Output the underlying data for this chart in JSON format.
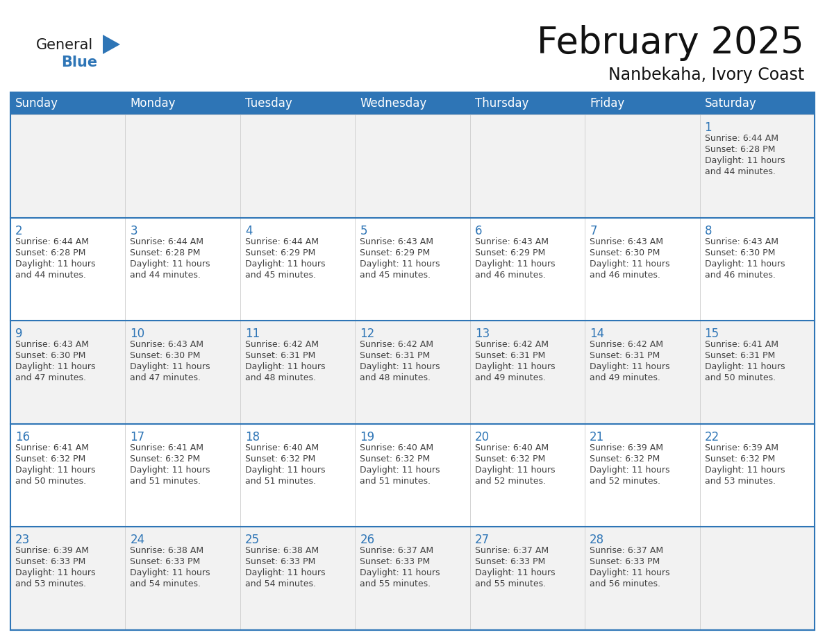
{
  "title": "February 2025",
  "subtitle": "Nanbekaha, Ivory Coast",
  "header_bg": "#2E75B6",
  "header_text_color": "#FFFFFF",
  "cell_bg_white": "#FFFFFF",
  "cell_bg_gray": "#F2F2F2",
  "border_color_blue": "#2E75B6",
  "border_color_gray": "#CCCCCC",
  "text_color": "#404040",
  "day_number_color": "#2E75B6",
  "weekdays": [
    "Sunday",
    "Monday",
    "Tuesday",
    "Wednesday",
    "Thursday",
    "Friday",
    "Saturday"
  ],
  "logo_general_color": "#1a1a1a",
  "logo_blue_color": "#2E75B6",
  "calendar_data": [
    [
      null,
      null,
      null,
      null,
      null,
      null,
      {
        "day": 1,
        "sunrise": "6:44 AM",
        "sunset": "6:28 PM",
        "daylight_hours": 11,
        "daylight_minutes": 44
      }
    ],
    [
      {
        "day": 2,
        "sunrise": "6:44 AM",
        "sunset": "6:28 PM",
        "daylight_hours": 11,
        "daylight_minutes": 44
      },
      {
        "day": 3,
        "sunrise": "6:44 AM",
        "sunset": "6:28 PM",
        "daylight_hours": 11,
        "daylight_minutes": 44
      },
      {
        "day": 4,
        "sunrise": "6:44 AM",
        "sunset": "6:29 PM",
        "daylight_hours": 11,
        "daylight_minutes": 45
      },
      {
        "day": 5,
        "sunrise": "6:43 AM",
        "sunset": "6:29 PM",
        "daylight_hours": 11,
        "daylight_minutes": 45
      },
      {
        "day": 6,
        "sunrise": "6:43 AM",
        "sunset": "6:29 PM",
        "daylight_hours": 11,
        "daylight_minutes": 46
      },
      {
        "day": 7,
        "sunrise": "6:43 AM",
        "sunset": "6:30 PM",
        "daylight_hours": 11,
        "daylight_minutes": 46
      },
      {
        "day": 8,
        "sunrise": "6:43 AM",
        "sunset": "6:30 PM",
        "daylight_hours": 11,
        "daylight_minutes": 46
      }
    ],
    [
      {
        "day": 9,
        "sunrise": "6:43 AM",
        "sunset": "6:30 PM",
        "daylight_hours": 11,
        "daylight_minutes": 47
      },
      {
        "day": 10,
        "sunrise": "6:43 AM",
        "sunset": "6:30 PM",
        "daylight_hours": 11,
        "daylight_minutes": 47
      },
      {
        "day": 11,
        "sunrise": "6:42 AM",
        "sunset": "6:31 PM",
        "daylight_hours": 11,
        "daylight_minutes": 48
      },
      {
        "day": 12,
        "sunrise": "6:42 AM",
        "sunset": "6:31 PM",
        "daylight_hours": 11,
        "daylight_minutes": 48
      },
      {
        "day": 13,
        "sunrise": "6:42 AM",
        "sunset": "6:31 PM",
        "daylight_hours": 11,
        "daylight_minutes": 49
      },
      {
        "day": 14,
        "sunrise": "6:42 AM",
        "sunset": "6:31 PM",
        "daylight_hours": 11,
        "daylight_minutes": 49
      },
      {
        "day": 15,
        "sunrise": "6:41 AM",
        "sunset": "6:31 PM",
        "daylight_hours": 11,
        "daylight_minutes": 50
      }
    ],
    [
      {
        "day": 16,
        "sunrise": "6:41 AM",
        "sunset": "6:32 PM",
        "daylight_hours": 11,
        "daylight_minutes": 50
      },
      {
        "day": 17,
        "sunrise": "6:41 AM",
        "sunset": "6:32 PM",
        "daylight_hours": 11,
        "daylight_minutes": 51
      },
      {
        "day": 18,
        "sunrise": "6:40 AM",
        "sunset": "6:32 PM",
        "daylight_hours": 11,
        "daylight_minutes": 51
      },
      {
        "day": 19,
        "sunrise": "6:40 AM",
        "sunset": "6:32 PM",
        "daylight_hours": 11,
        "daylight_minutes": 51
      },
      {
        "day": 20,
        "sunrise": "6:40 AM",
        "sunset": "6:32 PM",
        "daylight_hours": 11,
        "daylight_minutes": 52
      },
      {
        "day": 21,
        "sunrise": "6:39 AM",
        "sunset": "6:32 PM",
        "daylight_hours": 11,
        "daylight_minutes": 52
      },
      {
        "day": 22,
        "sunrise": "6:39 AM",
        "sunset": "6:32 PM",
        "daylight_hours": 11,
        "daylight_minutes": 53
      }
    ],
    [
      {
        "day": 23,
        "sunrise": "6:39 AM",
        "sunset": "6:33 PM",
        "daylight_hours": 11,
        "daylight_minutes": 53
      },
      {
        "day": 24,
        "sunrise": "6:38 AM",
        "sunset": "6:33 PM",
        "daylight_hours": 11,
        "daylight_minutes": 54
      },
      {
        "day": 25,
        "sunrise": "6:38 AM",
        "sunset": "6:33 PM",
        "daylight_hours": 11,
        "daylight_minutes": 54
      },
      {
        "day": 26,
        "sunrise": "6:37 AM",
        "sunset": "6:33 PM",
        "daylight_hours": 11,
        "daylight_minutes": 55
      },
      {
        "day": 27,
        "sunrise": "6:37 AM",
        "sunset": "6:33 PM",
        "daylight_hours": 11,
        "daylight_minutes": 55
      },
      {
        "day": 28,
        "sunrise": "6:37 AM",
        "sunset": "6:33 PM",
        "daylight_hours": 11,
        "daylight_minutes": 56
      },
      null
    ]
  ]
}
